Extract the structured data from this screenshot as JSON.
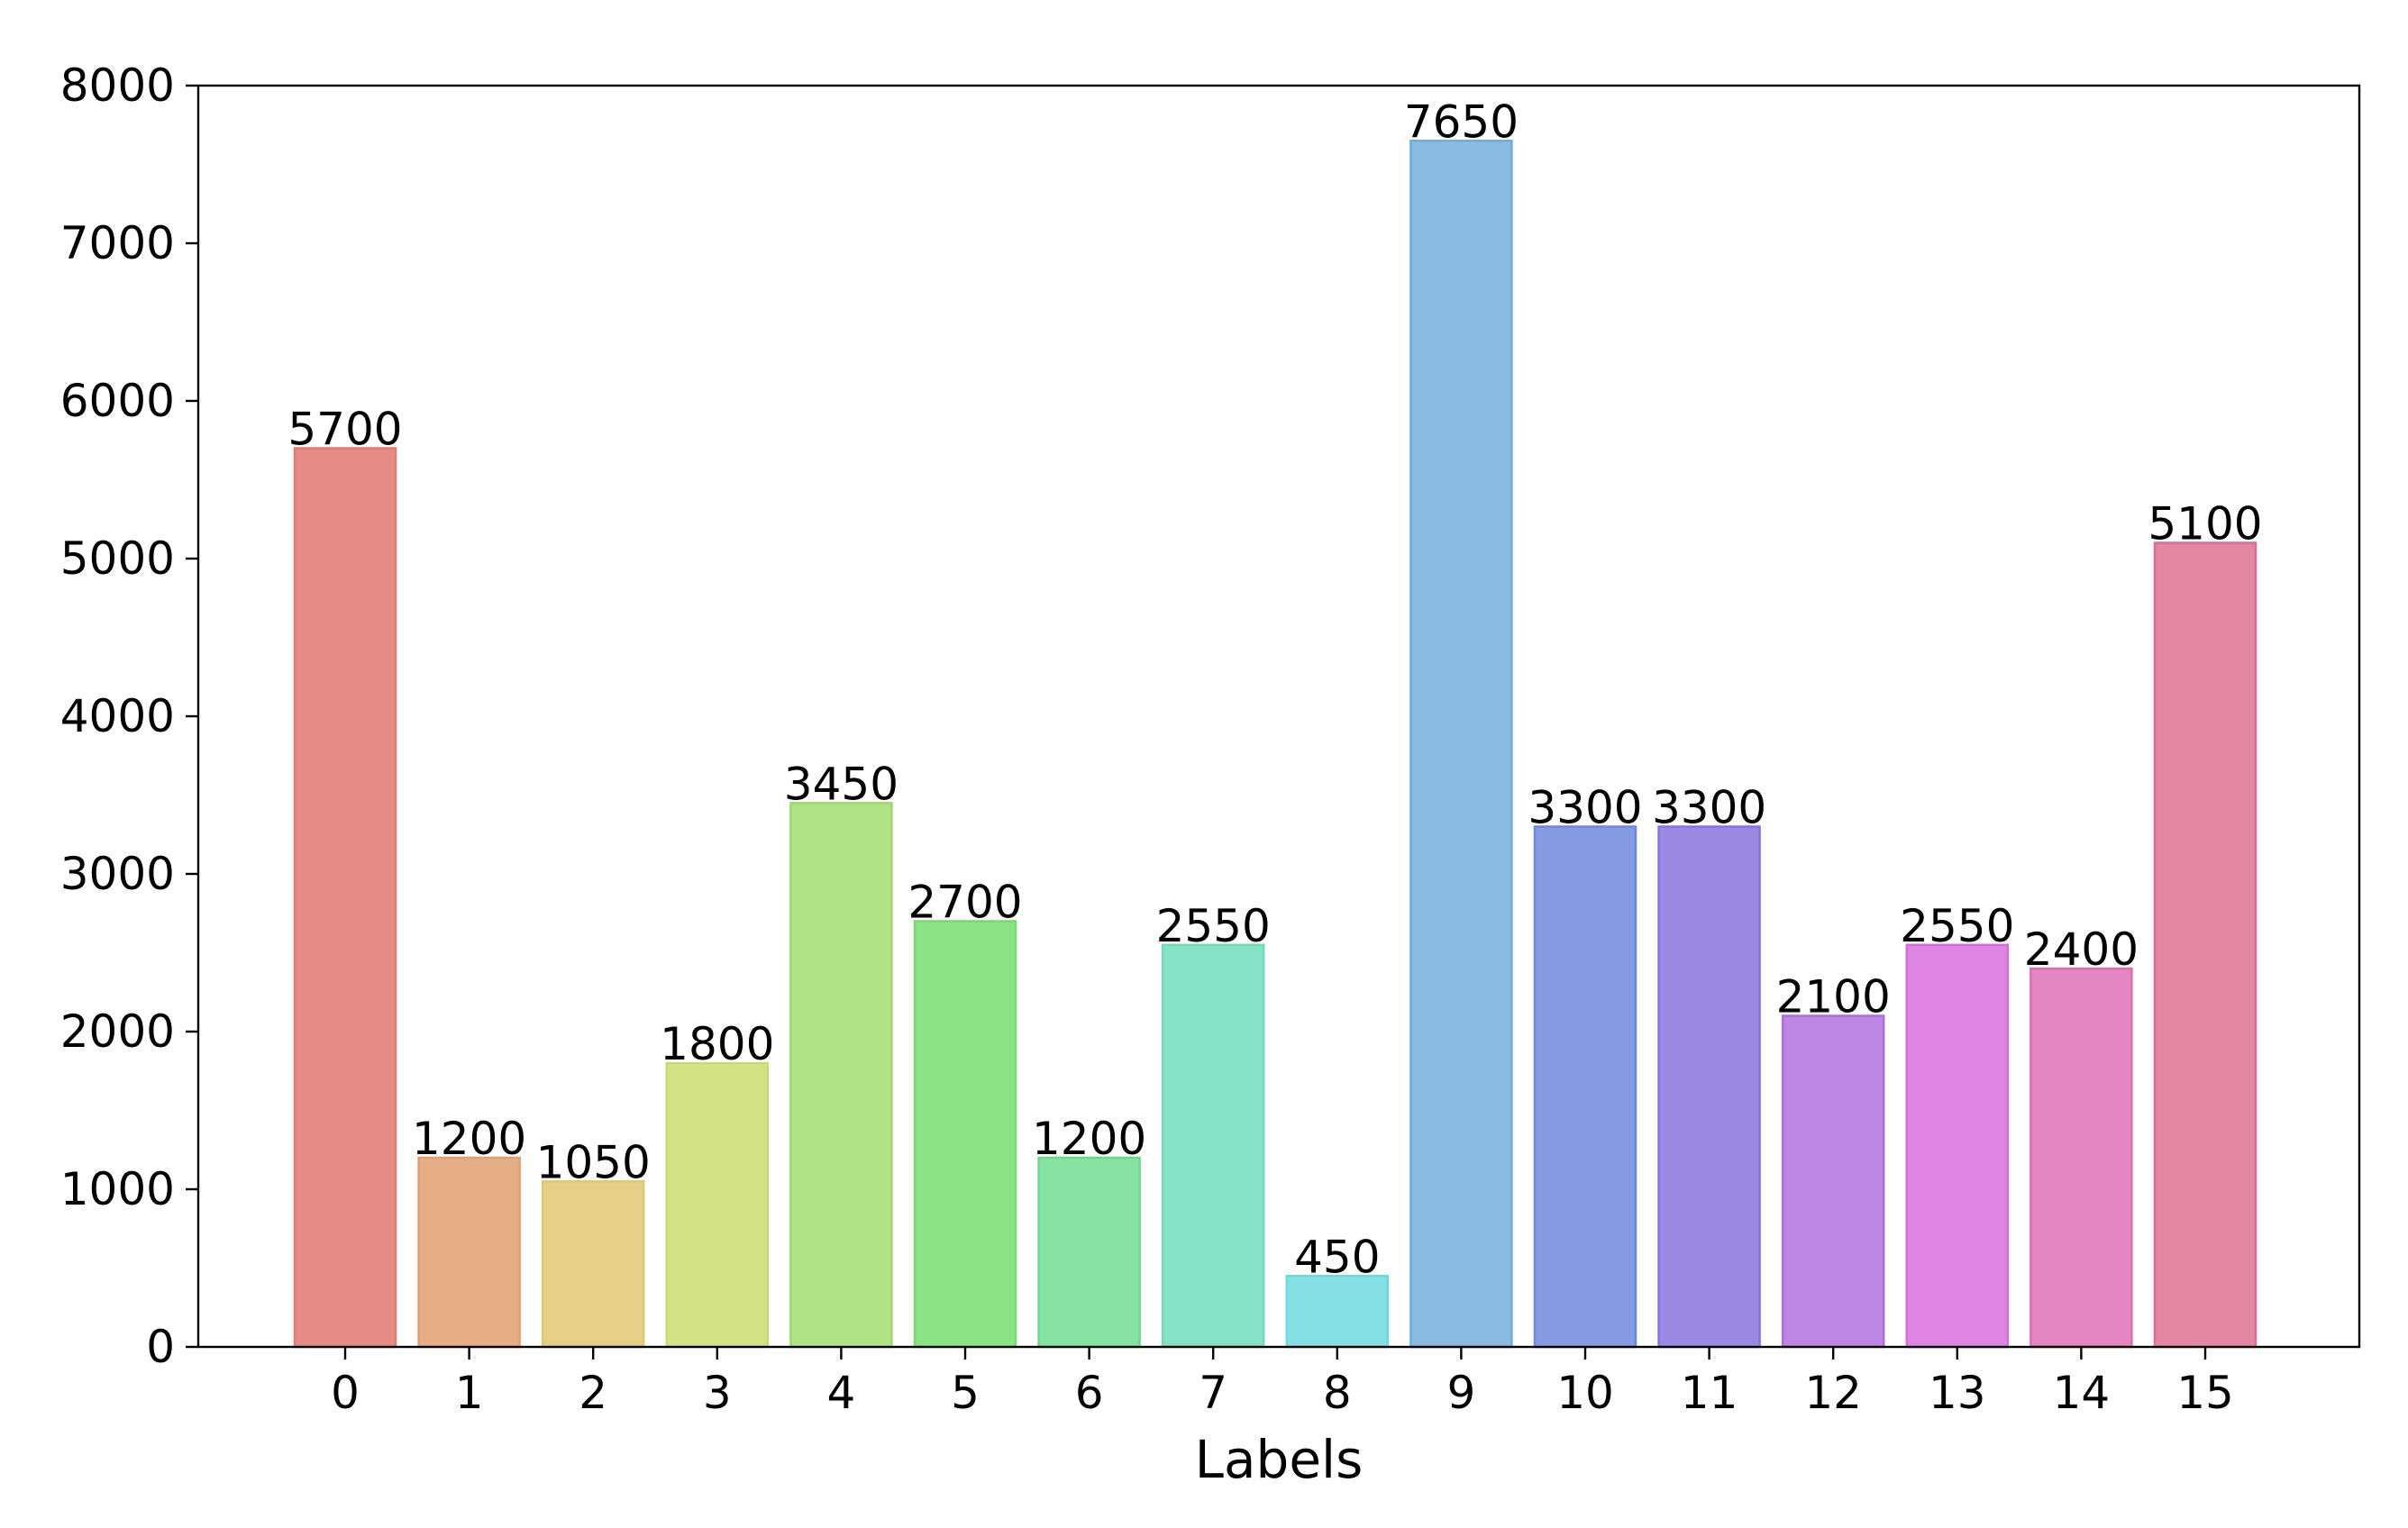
{
  "chart_data": {
    "type": "bar",
    "title": "",
    "xlabel": "Labels",
    "ylabel": "",
    "categories": [
      "0",
      "1",
      "2",
      "3",
      "4",
      "5",
      "6",
      "7",
      "8",
      "9",
      "10",
      "11",
      "12",
      "13",
      "14",
      "15"
    ],
    "values": [
      5700,
      1200,
      1050,
      1800,
      3450,
      2700,
      1200,
      2550,
      450,
      7650,
      3300,
      3300,
      2100,
      2550,
      2400,
      5100
    ],
    "data_labels": [
      "5700",
      "1200",
      "1050",
      "1800",
      "3450",
      "2700",
      "1200",
      "2550",
      "450",
      "7650",
      "3300",
      "3300",
      "2100",
      "2550",
      "2400",
      "5100"
    ],
    "colors": [
      "#e58c86",
      "#e5ae86",
      "#e5d086",
      "#d4e286",
      "#b0e286",
      "#8ee286",
      "#86e2a2",
      "#86e2c6",
      "#86e0e3",
      "#8abce3",
      "#879be3",
      "#9b89e3",
      "#bd86e3",
      "#df86e3",
      "#e386c1",
      "#e386a2"
    ],
    "edge_colors": [
      "#e07a74",
      "#e09e72",
      "#e0c872",
      "#c9da72",
      "#9fd86f",
      "#76da6c",
      "#6dd88c",
      "#6fdcb8",
      "#6cd8dc",
      "#6faddd",
      "#6e86dd",
      "#8872dd",
      "#ad6ddc",
      "#d76bdc",
      "#dc6cb3",
      "#dc6c90"
    ],
    "ylim": [
      0,
      8000
    ],
    "yticks": [
      "0",
      "1000",
      "2000",
      "3000",
      "4000",
      "5000",
      "6000",
      "7000",
      "8000"
    ],
    "grid": false,
    "legend": "none"
  }
}
